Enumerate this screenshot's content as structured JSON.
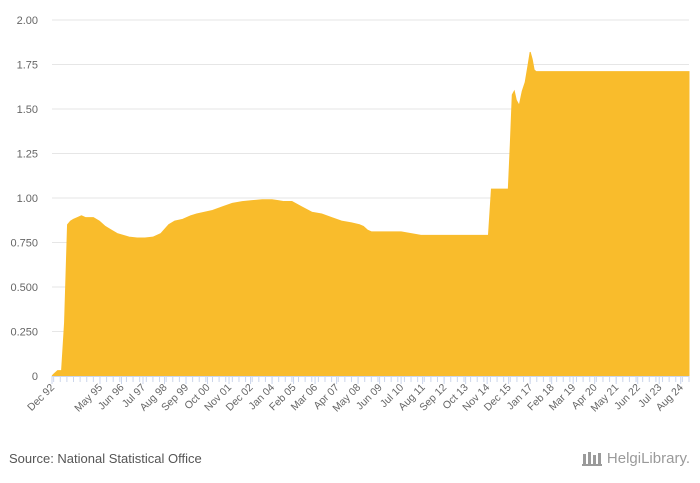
{
  "chart_data": {
    "type": "area",
    "title": "",
    "xlabel": "",
    "ylabel": "",
    "ylim": [
      0,
      2.0
    ],
    "yticks": [
      "0",
      "0.250",
      "0.500",
      "0.750",
      "1.00",
      "1.25",
      "1.50",
      "1.75",
      "2.00"
    ],
    "ytick_values": [
      0,
      0.25,
      0.5,
      0.75,
      1.0,
      1.25,
      1.5,
      1.75,
      2.0
    ],
    "x_range": [
      1992.917,
      2025.0
    ],
    "xticks": [
      "Dec 92",
      "May 95",
      "Jun 96",
      "Jul 97",
      "Aug 98",
      "Sep 99",
      "Oct 00",
      "Nov 01",
      "Dec 02",
      "Jan 04",
      "Feb 05",
      "Mar 06",
      "Apr 07",
      "May 08",
      "Jun 09",
      "Jul 10",
      "Aug 11",
      "Sep 12",
      "Oct 13",
      "Nov 14",
      "Dec 15",
      "Jan 17",
      "Feb 18",
      "Mar 19",
      "Apr 20",
      "May 21",
      "Jun 22",
      "Jul 23",
      "Aug 24"
    ],
    "xtick_positions": [
      1992.917,
      1995.333,
      1996.417,
      1997.5,
      1998.583,
      1999.667,
      2000.75,
      2001.833,
      2002.917,
      2004.0,
      2005.083,
      2006.167,
      2007.25,
      2008.333,
      2009.417,
      2010.5,
      2011.583,
      2012.667,
      2013.75,
      2014.833,
      2015.917,
      2017.0,
      2018.083,
      2019.167,
      2020.25,
      2021.333,
      2022.417,
      2023.5,
      2024.583
    ],
    "color": "#F9BC2C",
    "series": [
      {
        "name": "value",
        "x": [
          1992.92,
          1993.0,
          1993.2,
          1993.4,
          1993.55,
          1993.7,
          1993.85,
          1994.0,
          1994.2,
          1994.4,
          1994.6,
          1994.8,
          1995.0,
          1995.3,
          1995.6,
          1995.9,
          1996.2,
          1996.5,
          1996.8,
          1997.2,
          1997.6,
          1998.0,
          1998.4,
          1998.8,
          1999.1,
          1999.5,
          1999.7,
          1999.9,
          2000.2,
          2000.6,
          2001.0,
          2001.5,
          2002.0,
          2002.5,
          2003.0,
          2003.5,
          2004.0,
          2004.3,
          2004.6,
          2005.0,
          2005.5,
          2006.0,
          2006.5,
          2007.0,
          2007.5,
          2008.0,
          2008.4,
          2008.6,
          2008.8,
          2009.0,
          2009.5,
          2010.0,
          2010.5,
          2011.0,
          2011.5,
          2012.0,
          2013.0,
          2014.0,
          2014.9,
          2015.05,
          2015.2,
          2015.3,
          2015.6,
          2015.9,
          2016.0,
          2016.1,
          2016.2,
          2016.3,
          2016.45,
          2016.6,
          2016.75,
          2016.9,
          2017.0,
          2017.1,
          2017.2,
          2017.3,
          2017.45,
          2017.6,
          2017.8,
          2018.0,
          2019.0,
          2020.0,
          2021.0,
          2022.0,
          2023.0,
          2024.0,
          2025.0
        ],
        "values": [
          0.0,
          0.01,
          0.03,
          0.03,
          0.3,
          0.85,
          0.87,
          0.88,
          0.89,
          0.9,
          0.89,
          0.89,
          0.89,
          0.87,
          0.84,
          0.82,
          0.8,
          0.79,
          0.78,
          0.775,
          0.775,
          0.78,
          0.8,
          0.85,
          0.87,
          0.88,
          0.89,
          0.9,
          0.91,
          0.92,
          0.93,
          0.95,
          0.97,
          0.98,
          0.985,
          0.99,
          0.99,
          0.985,
          0.98,
          0.98,
          0.95,
          0.92,
          0.91,
          0.89,
          0.87,
          0.86,
          0.85,
          0.84,
          0.82,
          0.81,
          0.81,
          0.81,
          0.81,
          0.8,
          0.79,
          0.79,
          0.79,
          0.79,
          0.79,
          1.05,
          1.05,
          1.05,
          1.05,
          1.05,
          1.3,
          1.58,
          1.6,
          1.55,
          1.52,
          1.6,
          1.65,
          1.75,
          1.82,
          1.78,
          1.72,
          1.71,
          1.71,
          1.71,
          1.71,
          1.71,
          1.71,
          1.71,
          1.71,
          1.71,
          1.71,
          1.71,
          1.71
        ]
      }
    ]
  },
  "footer": {
    "source": "Source: National Statistical Office",
    "brand": "HelgiLibrary."
  }
}
